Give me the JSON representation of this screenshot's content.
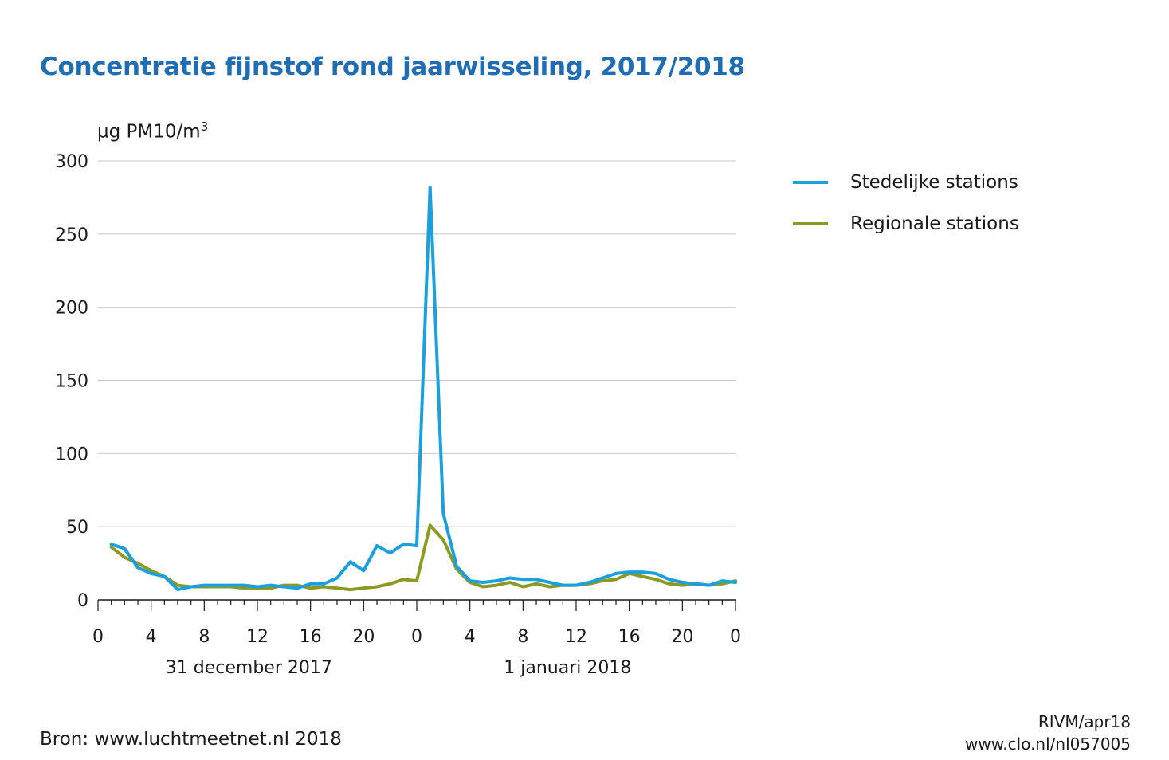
{
  "title": "Concentratie fijnstof rond jaarwisseling, 2017/2018",
  "unit_label": {
    "text": "µg PM10/m",
    "superscript": "3"
  },
  "source": "Bron: www.luchtmeetnet.nl 2018",
  "credits": [
    "RIVM/apr18",
    "www.clo.nl/nl057005"
  ],
  "chart_data": {
    "type": "line",
    "title": "Concentratie fijnstof rond jaarwisseling, 2017/2018",
    "ylabel": "µg PM10/m3",
    "xlabel": "",
    "ylim": [
      0,
      300
    ],
    "yticks": [
      0,
      50,
      100,
      150,
      200,
      250,
      300
    ],
    "xlim": [
      0,
      48
    ],
    "xticks": [
      0,
      4,
      8,
      12,
      16,
      20,
      24,
      28,
      32,
      36,
      40,
      44,
      48
    ],
    "xtick_labels": [
      "0",
      "4",
      "8",
      "12",
      "16",
      "20",
      "0",
      "4",
      "8",
      "12",
      "16",
      "20",
      "0"
    ],
    "date_labels": [
      {
        "text": "31 december 2017",
        "center_hour": 11
      },
      {
        "text": "1 januari 2018",
        "center_hour": 35
      }
    ],
    "grid": true,
    "legend_position": "right",
    "x": [
      1,
      2,
      3,
      4,
      5,
      6,
      7,
      8,
      9,
      10,
      11,
      12,
      13,
      14,
      15,
      16,
      17,
      18,
      19,
      20,
      21,
      22,
      23,
      24,
      25,
      26,
      27,
      28,
      29,
      30,
      31,
      32,
      33,
      34,
      35,
      36,
      37,
      38,
      39,
      40,
      41,
      42,
      43,
      44,
      45,
      46,
      47,
      48
    ],
    "series": [
      {
        "name": "Stedelijke stations",
        "color": "#1aa0dc",
        "values": [
          38,
          35,
          22,
          18,
          16,
          7,
          9,
          10,
          10,
          10,
          10,
          9,
          10,
          9,
          8,
          11,
          11,
          15,
          26,
          20,
          37,
          32,
          38,
          37,
          282,
          59,
          23,
          13,
          12,
          13,
          15,
          14,
          14,
          12,
          10,
          10,
          12,
          15,
          18,
          19,
          19,
          18,
          14,
          12,
          11,
          10,
          13,
          12
        ]
      },
      {
        "name": "Regionale stations",
        "color": "#8c9a23",
        "values": [
          36,
          29,
          25,
          20,
          16,
          10,
          9,
          9,
          9,
          9,
          8,
          8,
          8,
          10,
          10,
          8,
          9,
          8,
          7,
          8,
          9,
          11,
          14,
          13,
          51,
          41,
          21,
          12,
          9,
          10,
          12,
          9,
          11,
          9,
          10,
          10,
          11,
          13,
          14,
          18,
          16,
          14,
          11,
          10,
          11,
          10,
          11,
          13
        ]
      }
    ]
  }
}
